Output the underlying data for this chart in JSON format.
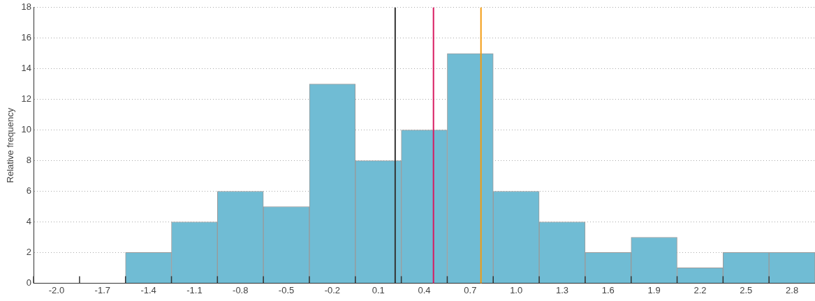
{
  "chart_data": {
    "type": "histogram",
    "ylabel": "Relative frequency",
    "bins": [
      -2.15,
      -1.85,
      -1.55,
      -1.25,
      -0.95,
      -0.65,
      -0.35,
      -0.05,
      0.25,
      0.55,
      0.85,
      1.15,
      1.45,
      1.75,
      2.05,
      2.35,
      2.65,
      2.95
    ],
    "values": [
      0,
      0,
      2,
      4,
      6,
      5,
      13,
      8,
      10,
      15,
      6,
      4,
      2,
      3,
      1,
      2,
      2
    ],
    "color": "#70bcd4",
    "xlim": [
      -2.15,
      2.95
    ],
    "xticks": [
      {
        "value": -2.15,
        "label": null
      },
      {
        "value": -2.0,
        "label": "-2.0"
      },
      {
        "value": -1.85,
        "label": null
      },
      {
        "value": -1.7,
        "label": "-1.7"
      },
      {
        "value": -1.55,
        "label": null
      },
      {
        "value": -1.4,
        "label": "-1.4"
      },
      {
        "value": -1.25,
        "label": null
      },
      {
        "value": -1.1,
        "label": "-1.1"
      },
      {
        "value": -0.95,
        "label": null
      },
      {
        "value": -0.8,
        "label": "-0.8"
      },
      {
        "value": -0.65,
        "label": null
      },
      {
        "value": -0.5,
        "label": "-0.5"
      },
      {
        "value": -0.35,
        "label": null
      },
      {
        "value": -0.2,
        "label": "-0.2"
      },
      {
        "value": -0.05,
        "label": null
      },
      {
        "value": 0.1,
        "label": "0.1"
      },
      {
        "value": 0.25,
        "label": null
      },
      {
        "value": 0.4,
        "label": "0.4"
      },
      {
        "value": 0.55,
        "label": null
      },
      {
        "value": 0.7,
        "label": "0.7"
      },
      {
        "value": 0.85,
        "label": null
      },
      {
        "value": 1.0,
        "label": "1.0"
      },
      {
        "value": 1.15,
        "label": null
      },
      {
        "value": 1.3,
        "label": "1.3"
      },
      {
        "value": 1.45,
        "label": null
      },
      {
        "value": 1.6,
        "label": "1.6"
      },
      {
        "value": 1.75,
        "label": null
      },
      {
        "value": 1.9,
        "label": "1.9"
      },
      {
        "value": 2.05,
        "label": null
      },
      {
        "value": 2.2,
        "label": "2.2"
      },
      {
        "value": 2.35,
        "label": null
      },
      {
        "value": 2.5,
        "label": "2.5"
      },
      {
        "value": 2.65,
        "label": null
      },
      {
        "value": 2.8,
        "label": "2.8"
      }
    ],
    "ylim": [
      0,
      18
    ],
    "yticks": [
      0,
      2,
      4,
      6,
      8,
      10,
      12,
      14,
      16,
      18
    ],
    "grid": "y",
    "ref_lines": [
      {
        "axis": "x",
        "value": 0.21,
        "color": "#333333"
      },
      {
        "axis": "x",
        "value": 0.46,
        "color": "#d81b60"
      },
      {
        "axis": "x",
        "value": 0.77,
        "color": "#f39c12"
      }
    ]
  }
}
